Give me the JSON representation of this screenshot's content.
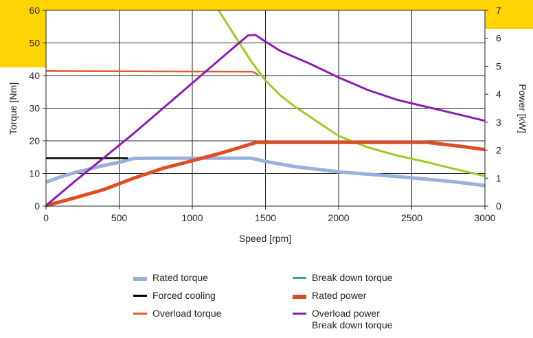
{
  "chart_data": {
    "type": "line",
    "xlabel": "Speed [rpm]",
    "ylabel_left": "Torque [Nm]",
    "ylabel_right": "Power [kW]",
    "xlim": [
      0,
      3000
    ],
    "ylim_left": [
      0,
      60
    ],
    "ylim_right": [
      0,
      7
    ],
    "x_ticks": [
      "0",
      "500",
      "1000",
      "1500",
      "2000",
      "2500",
      "3000"
    ],
    "y_left_ticks": [
      "0",
      "10",
      "20",
      "30",
      "40",
      "50",
      "60"
    ],
    "y_right_ticks": [
      "0",
      "1",
      "2",
      "3",
      "4",
      "5",
      "6",
      "7"
    ],
    "grid": true,
    "legend_position": "bottom",
    "background_color": "#ffffff",
    "accent_color": "#ffd400",
    "series": [
      {
        "name": "Rated torque",
        "axis": "left",
        "color": "#98b0dd",
        "points": [
          [
            0,
            7.3
          ],
          [
            100,
            9
          ],
          [
            200,
            10.3
          ],
          [
            300,
            11.4
          ],
          [
            400,
            12.5
          ],
          [
            500,
            13.4
          ],
          [
            600,
            14.6
          ],
          [
            700,
            14.7
          ],
          [
            1400,
            14.7
          ],
          [
            1500,
            13.7
          ],
          [
            1700,
            12.1
          ],
          [
            2000,
            10.5
          ],
          [
            2500,
            8.7
          ],
          [
            2800,
            7.4
          ],
          [
            3000,
            6.3
          ]
        ]
      },
      {
        "name": "Forced cooling",
        "axis": "left",
        "color": "#000000",
        "points": [
          [
            0,
            14.7
          ],
          [
            560,
            14.7
          ]
        ]
      },
      {
        "name": "Overload torque",
        "axis": "left",
        "color": "#e05a2b",
        "points": [
          [
            0,
            41.4
          ],
          [
            1410,
            41.2
          ],
          [
            1450,
            40.3
          ]
        ]
      },
      {
        "name": "Break down torque",
        "axis": "left",
        "color": "#9acd22",
        "points": [
          [
            1180,
            60
          ],
          [
            1300,
            51.5
          ],
          [
            1400,
            44.5
          ],
          [
            1500,
            38.5
          ],
          [
            1600,
            34
          ],
          [
            1700,
            30.5
          ],
          [
            1800,
            27.5
          ],
          [
            2000,
            21.5
          ],
          [
            2200,
            18
          ],
          [
            2400,
            15.5
          ],
          [
            2600,
            13.5
          ],
          [
            2800,
            11.3
          ],
          [
            3000,
            9.2
          ]
        ]
      },
      {
        "name": "Rated power",
        "axis": "right",
        "color": "#e04b22",
        "points": [
          [
            0,
            0.02
          ],
          [
            200,
            0.3
          ],
          [
            400,
            0.6
          ],
          [
            600,
            1.0
          ],
          [
            800,
            1.35
          ],
          [
            1000,
            1.62
          ],
          [
            1200,
            1.9
          ],
          [
            1440,
            2.28
          ],
          [
            1600,
            2.28
          ],
          [
            2600,
            2.28
          ],
          [
            2700,
            2.22
          ],
          [
            2850,
            2.13
          ],
          [
            3000,
            2.02
          ]
        ]
      },
      {
        "name": "Overload power",
        "axis": "right",
        "color": "#8e1ab4",
        "points": [
          [
            0,
            0.02
          ],
          [
            200,
            0.9
          ],
          [
            400,
            1.75
          ],
          [
            600,
            2.6
          ],
          [
            800,
            3.5
          ],
          [
            1000,
            4.4
          ],
          [
            1200,
            5.3
          ],
          [
            1380,
            6.1
          ],
          [
            1430,
            6.12
          ],
          [
            1480,
            5.95
          ],
          [
            1600,
            5.55
          ],
          [
            1800,
            5.1
          ],
          [
            2000,
            4.6
          ],
          [
            2200,
            4.15
          ],
          [
            2400,
            3.8
          ],
          [
            2600,
            3.55
          ],
          [
            2800,
            3.3
          ],
          [
            3000,
            3.05
          ]
        ]
      }
    ],
    "legend": [
      {
        "label": "Rated torque",
        "color": "#98b0dd",
        "thickness": 6
      },
      {
        "label": "Break down torque",
        "color": "#2ab07a",
        "thickness": 3
      },
      {
        "label": "Forced cooling",
        "color": "#000000",
        "thickness": 3
      },
      {
        "label": "Rated power",
        "color": "#e04b22",
        "thickness": 6
      },
      {
        "label": "Overload torque",
        "color": "#e05a2b",
        "thickness": 3
      },
      {
        "label": "Overload power\nBreak down torque",
        "color": "#8e1ab4",
        "thickness": 3
      }
    ]
  }
}
